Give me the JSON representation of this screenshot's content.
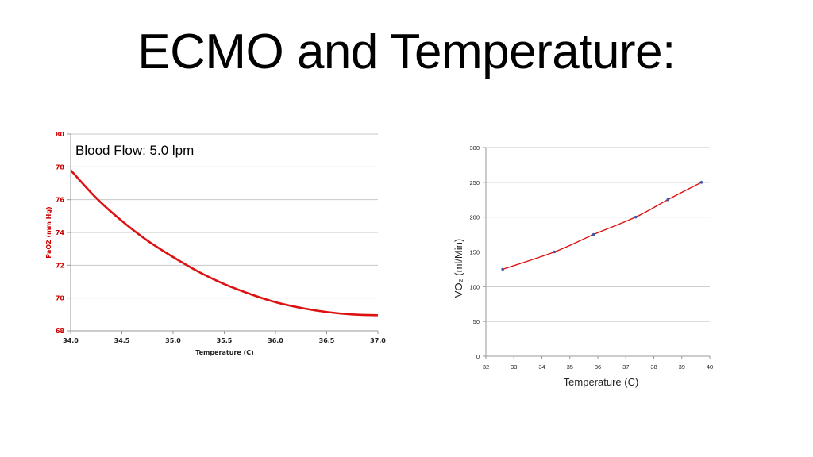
{
  "slide": {
    "title": "ECMO and Temperature:"
  },
  "chart_data": [
    {
      "type": "line",
      "annotation": "Blood Flow: 5.0 lpm",
      "xlabel": "Temperature (C)",
      "ylabel": "PaO2 (mm Hg)",
      "xlim": [
        34.0,
        37.0
      ],
      "ylim": [
        68,
        80
      ],
      "xticks": [
        "34.0",
        "34.5",
        "35.0",
        "35.5",
        "36.0",
        "36.5",
        "37.0"
      ],
      "yticks": [
        "68",
        "70",
        "72",
        "74",
        "76",
        "78",
        "80"
      ],
      "grid": "horizontal",
      "color": "#dd1111",
      "series": [
        {
          "x": [
            34.0,
            34.25,
            34.5,
            34.75,
            35.0,
            35.25,
            35.5,
            35.75,
            36.0,
            36.25,
            36.5,
            36.75,
            37.0
          ],
          "values": [
            77.8,
            76.1,
            74.7,
            73.5,
            72.5,
            71.6,
            70.85,
            70.25,
            69.75,
            69.4,
            69.15,
            69.0,
            68.95
          ]
        }
      ]
    },
    {
      "type": "line",
      "xlabel": "Temperature (C)",
      "ylabel": "VO₂ (ml/Min)",
      "xlim": [
        32,
        40
      ],
      "ylim": [
        0,
        300
      ],
      "xticks": [
        "32",
        "33",
        "34",
        "35",
        "36",
        "37",
        "38",
        "39",
        "40"
      ],
      "yticks": [
        "0",
        "50",
        "100",
        "150",
        "200",
        "250",
        "300"
      ],
      "grid": "horizontal",
      "color": "#dd1111",
      "marker_color": "#4455aa",
      "series": [
        {
          "x": [
            32.6,
            34.45,
            35.85,
            37.35,
            38.5,
            39.7
          ],
          "values": [
            125,
            150,
            175,
            200,
            225,
            250
          ]
        }
      ]
    }
  ]
}
